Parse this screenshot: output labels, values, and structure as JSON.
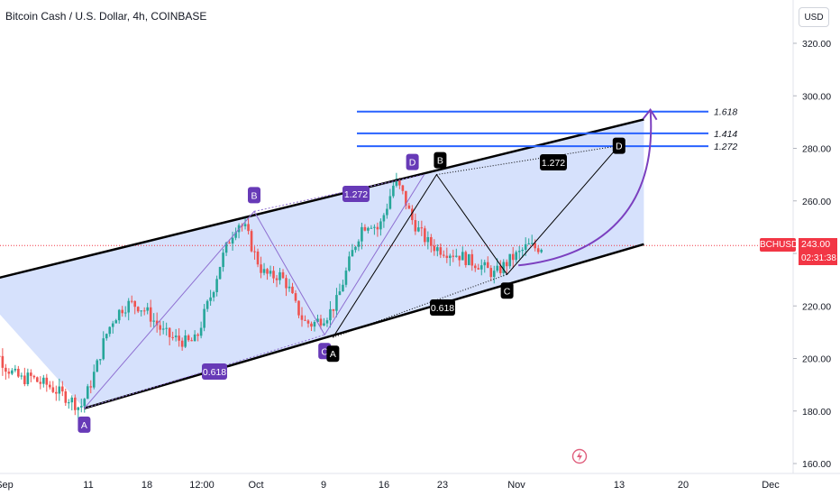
{
  "header": {
    "title": "Bitcoin Cash / U.S. Dollar, 4h, COINBASE"
  },
  "price_axis": {
    "currency_button": "USD"
  },
  "last_price": {
    "symbol": "BCHUSD",
    "value": "243.00",
    "countdown": "02:31:38"
  },
  "icons": {
    "alert": "lightning-alert-icon"
  },
  "colors": {
    "up": "#26a69a",
    "down": "#ef5350",
    "channel_fill": "#cfdcfb",
    "fib": "#2962ff",
    "pattern_label": "#673ab7",
    "price_line": "#f23645"
  },
  "chart_data": {
    "type": "candlestick",
    "symbol": "BCHUSD",
    "interval": "4h",
    "exchange": "COINBASE",
    "ylim": [
      158,
      330
    ],
    "y_ticks": [
      "320.00",
      "300.00",
      "280.00",
      "260.00",
      "240.00",
      "220.00",
      "200.00",
      "180.00",
      "160.00"
    ],
    "x_ticks": [
      "Sep",
      "11",
      "18",
      "12:00",
      "Oct",
      "9",
      "16",
      "23",
      "Nov",
      "13",
      "20",
      "Dec"
    ],
    "last_price": 243.0,
    "price_path": [
      [
        -2,
        209
      ],
      [
        -1,
        205
      ],
      [
        0,
        202
      ],
      [
        1,
        197
      ],
      [
        2,
        194
      ],
      [
        3,
        192
      ],
      [
        4,
        193
      ],
      [
        5,
        191
      ],
      [
        6,
        190
      ],
      [
        7,
        188
      ],
      [
        8,
        186
      ],
      [
        9,
        184
      ],
      [
        10,
        181
      ],
      [
        11,
        188
      ],
      [
        12,
        197
      ],
      [
        13,
        208
      ],
      [
        14,
        215
      ],
      [
        15,
        219
      ],
      [
        16,
        221
      ],
      [
        17,
        220
      ],
      [
        18,
        218
      ],
      [
        19,
        214
      ],
      [
        20,
        210
      ],
      [
        21,
        208
      ],
      [
        22,
        207
      ],
      [
        23,
        206
      ],
      [
        24,
        207
      ],
      [
        25,
        217
      ],
      [
        26,
        226
      ],
      [
        27,
        237
      ],
      [
        28,
        245
      ],
      [
        29,
        252
      ],
      [
        30,
        249
      ],
      [
        31,
        240
      ],
      [
        32,
        233
      ],
      [
        33,
        231
      ],
      [
        34,
        232
      ],
      [
        35,
        228
      ],
      [
        36,
        220
      ],
      [
        37,
        214
      ],
      [
        38,
        213
      ],
      [
        39,
        215
      ],
      [
        40,
        217
      ],
      [
        41,
        222
      ],
      [
        42,
        232
      ],
      [
        43,
        242
      ],
      [
        44,
        250
      ],
      [
        45,
        252
      ],
      [
        46,
        249
      ],
      [
        47,
        258
      ],
      [
        48,
        268
      ],
      [
        49,
        262
      ],
      [
        50,
        253
      ],
      [
        51,
        248
      ],
      [
        52,
        244
      ],
      [
        53,
        242
      ],
      [
        54,
        241
      ],
      [
        55,
        240
      ],
      [
        56,
        239
      ],
      [
        57,
        237
      ],
      [
        58,
        236
      ],
      [
        59,
        234
      ],
      [
        60,
        232
      ],
      [
        61,
        235
      ],
      [
        62,
        238
      ],
      [
        63,
        240
      ],
      [
        64,
        243
      ],
      [
        65,
        242
      ],
      [
        66,
        243
      ]
    ],
    "channel": {
      "upper_line": {
        "from": {
          "x": -2,
          "price": 229
        },
        "to": {
          "x": 78,
          "price": 291
        }
      },
      "lower_line": {
        "from": {
          "x": 10.5,
          "price": 181
        },
        "to": {
          "x": 78,
          "price": 243.5
        }
      }
    },
    "fib_levels": [
      {
        "label": "1.618",
        "price": 294.0
      },
      {
        "label": "1.414",
        "price": 285.7
      },
      {
        "label": "1.272",
        "price": 280.8
      }
    ],
    "harmonic_pattern_1": {
      "points": [
        {
          "label": "A",
          "x": 10.5,
          "price": 181
        },
        {
          "label": "B",
          "x": 31.0,
          "price": 256
        },
        {
          "label": "C",
          "x": 39.5,
          "price": 209
        },
        {
          "label": "D",
          "x": 51.5,
          "price": 270
        }
      ],
      "ratios": [
        {
          "label": "0.618"
        },
        {
          "label": "1.272"
        }
      ]
    },
    "harmonic_pattern_2": {
      "points": [
        {
          "label": "A",
          "x": 40.5,
          "price": 208
        },
        {
          "label": "B",
          "x": 53.0,
          "price": 270
        },
        {
          "label": "C",
          "x": 61.5,
          "price": 232
        },
        {
          "label": "D",
          "x": 75.0,
          "price": 281
        }
      ],
      "ratios": [
        {
          "label": "0.618"
        },
        {
          "label": "1.272"
        }
      ]
    },
    "projection_arrow": {
      "from": {
        "x": 62,
        "price": 232
      },
      "to": {
        "x": 79,
        "price": 294
      }
    }
  }
}
